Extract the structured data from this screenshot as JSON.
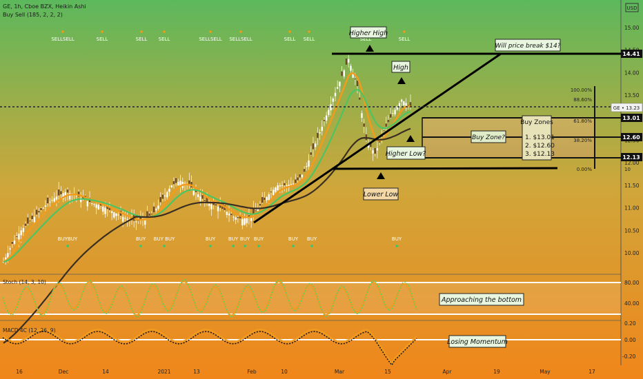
{
  "header": {
    "symbol_line": "GE, 1h, Cboe BZX, Heikin Ashi",
    "indicator_line": "Buy Sell (185, 2, 2, 2)",
    "currency": "USD"
  },
  "signals": {
    "sell_label": "SELL",
    "buy_label": "BUY",
    "sell_groups": [
      "SELLSELL",
      "SELL",
      "SELL",
      "SELL",
      "SELLSELL",
      "SELLSELL",
      "SELL",
      "SELL",
      "SELL",
      "SELL"
    ],
    "buy_groups": [
      "BUYBUY",
      "BUY",
      "BUY BUY",
      "BUY",
      "BUY",
      "BUY",
      "BUY",
      "BUY",
      "BUY",
      "BUY"
    ]
  },
  "annotations": {
    "higher_high": "Higher High",
    "high": "High",
    "will_break": "Will price break $14?",
    "buy_zone": "Buy Zone?",
    "buy_zones_title": "Buy Zones",
    "buy_zones_items": [
      "1. $13.01",
      "2. $12.60",
      "3. $12.13"
    ],
    "higher_low": "Higher Low?",
    "lower_low": "Lower Low",
    "approaching_bottom": "Approaching the bottom",
    "losing_momentum": "Losing Momentum"
  },
  "fib_levels": [
    "100.00%",
    "88.60%",
    "61.80%",
    "38.20%",
    "0.00%"
  ],
  "price_axis": {
    "ticks": [
      "15.00",
      "14.50",
      "14.00",
      "13.50",
      "13.00",
      "12.50",
      "12.00",
      "11.50",
      "11.00",
      "10.50",
      "10.00"
    ],
    "badges": [
      "14.41",
      "13.01",
      "12.60",
      "12.13"
    ],
    "current": "GE • 13.23",
    "cutoff": "10"
  },
  "stoch": {
    "label": "Stoch (14, 3, 10)",
    "ticks": [
      "80.00",
      "40.00"
    ]
  },
  "macd": {
    "label": "MACD 4C (12, 26, 9)",
    "ticks": [
      "0.20",
      "0.00",
      "-0.20"
    ]
  },
  "time_axis": [
    "16",
    "Dec",
    "14",
    "2021",
    "13",
    "Feb",
    "10",
    "Mar",
    "15",
    "Apr",
    "19",
    "May",
    "17"
  ],
  "colors": {
    "bg_top": "#5cb85c",
    "bg_bottom": "#f0861a",
    "ema_fast": "#f29b1d",
    "ema_mid": "#4cc462",
    "ema_slow": "#3a2e22",
    "sell_marker": "#f39c12",
    "buy_marker": "#2ecc71"
  },
  "chart_data": {
    "type": "candlestick",
    "price_levels": {
      "resistance": 14.41,
      "buy_zone_1": 13.01,
      "buy_zone_2": 12.6,
      "buy_zone_3": 12.13,
      "current": 13.23
    },
    "ylim": [
      9.75,
      15.2
    ],
    "closes": [
      9.8,
      10.2,
      10.5,
      10.7,
      10.9,
      11.1,
      11.25,
      11.35,
      11.3,
      11.2,
      11.1,
      11.05,
      10.95,
      10.85,
      10.75,
      10.7,
      10.75,
      10.9,
      11.2,
      11.5,
      11.6,
      11.5,
      11.3,
      11.1,
      11.05,
      10.95,
      10.8,
      10.75,
      10.8,
      11.05,
      11.3,
      11.5,
      11.5,
      11.55,
      11.8,
      12.3,
      12.8,
      13.3,
      13.8,
      14.3,
      13.7,
      12.5,
      12.2,
      12.7,
      13.1,
      13.4,
      13.25
    ]
  }
}
